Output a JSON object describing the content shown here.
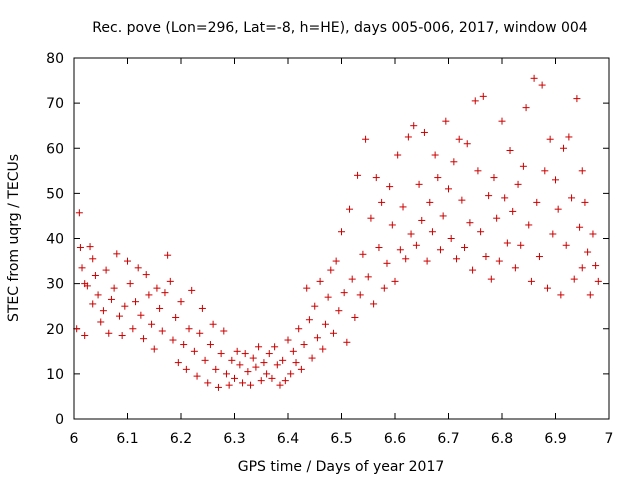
{
  "chart_data": {
    "type": "scatter",
    "title": "Rec. pove (Lon=296, Lat=-8, h=HE), days 005-006, 2017, window 004",
    "xlabel": "GPS time / Days of year 2017",
    "ylabel": "STEC from uqrg / TECUs",
    "xlim": [
      6,
      7
    ],
    "ylim": [
      0,
      80
    ],
    "x_ticks": [
      "6",
      "6.1",
      "6.2",
      "6.3",
      "6.4",
      "6.5",
      "6.6",
      "6.7",
      "6.8",
      "6.9",
      "7"
    ],
    "y_ticks": [
      "0",
      "10",
      "20",
      "30",
      "40",
      "50",
      "60",
      "70",
      "80"
    ],
    "marker": "+",
    "color": "#cc0000",
    "grid": false,
    "series": [
      {
        "name": "STEC",
        "points": [
          [
            6.005,
            20
          ],
          [
            6.01,
            45.7
          ],
          [
            6.012,
            38
          ],
          [
            6.015,
            33.5
          ],
          [
            6.02,
            30
          ],
          [
            6.02,
            18.5
          ],
          [
            6.025,
            29.5
          ],
          [
            6.03,
            38.2
          ],
          [
            6.035,
            35.5
          ],
          [
            6.035,
            25.5
          ],
          [
            6.04,
            31.8
          ],
          [
            6.045,
            27.5
          ],
          [
            6.05,
            21.5
          ],
          [
            6.055,
            24
          ],
          [
            6.06,
            33
          ],
          [
            6.065,
            19
          ],
          [
            6.07,
            26.5
          ],
          [
            6.075,
            29
          ],
          [
            6.08,
            36.6
          ],
          [
            6.085,
            22.8
          ],
          [
            6.09,
            18.5
          ],
          [
            6.095,
            25
          ],
          [
            6.1,
            35
          ],
          [
            6.105,
            30
          ],
          [
            6.11,
            20
          ],
          [
            6.115,
            26
          ],
          [
            6.12,
            33.5
          ],
          [
            6.125,
            23
          ],
          [
            6.13,
            17.8
          ],
          [
            6.135,
            32
          ],
          [
            6.14,
            27.5
          ],
          [
            6.145,
            21
          ],
          [
            6.15,
            15.5
          ],
          [
            6.155,
            29
          ],
          [
            6.16,
            24.5
          ],
          [
            6.165,
            19.5
          ],
          [
            6.17,
            28
          ],
          [
            6.175,
            36.3
          ],
          [
            6.18,
            30.5
          ],
          [
            6.185,
            17.5
          ],
          [
            6.19,
            22.5
          ],
          [
            6.195,
            12.5
          ],
          [
            6.2,
            26
          ],
          [
            6.205,
            16.5
          ],
          [
            6.21,
            11
          ],
          [
            6.215,
            20
          ],
          [
            6.22,
            28.5
          ],
          [
            6.225,
            15
          ],
          [
            6.23,
            9.5
          ],
          [
            6.235,
            19
          ],
          [
            6.24,
            24.5
          ],
          [
            6.245,
            13
          ],
          [
            6.25,
            8
          ],
          [
            6.255,
            16.5
          ],
          [
            6.26,
            21
          ],
          [
            6.265,
            11
          ],
          [
            6.27,
            7
          ],
          [
            6.275,
            14.5
          ],
          [
            6.28,
            19.5
          ],
          [
            6.285,
            10
          ],
          [
            6.29,
            7.5
          ],
          [
            6.295,
            13
          ],
          [
            6.3,
            9
          ],
          [
            6.305,
            15
          ],
          [
            6.31,
            12
          ],
          [
            6.315,
            8
          ],
          [
            6.32,
            14.5
          ],
          [
            6.325,
            10.5
          ],
          [
            6.33,
            7.5
          ],
          [
            6.335,
            13.5
          ],
          [
            6.34,
            11.5
          ],
          [
            6.345,
            16
          ],
          [
            6.35,
            8.5
          ],
          [
            6.355,
            12.5
          ],
          [
            6.36,
            10
          ],
          [
            6.365,
            14.5
          ],
          [
            6.37,
            9
          ],
          [
            6.375,
            16
          ],
          [
            6.38,
            12
          ],
          [
            6.385,
            7.5
          ],
          [
            6.39,
            13
          ],
          [
            6.395,
            8.5
          ],
          [
            6.4,
            17.5
          ],
          [
            6.405,
            10
          ],
          [
            6.41,
            15
          ],
          [
            6.415,
            12.5
          ],
          [
            6.42,
            20
          ],
          [
            6.425,
            11
          ],
          [
            6.43,
            16.5
          ],
          [
            6.435,
            29
          ],
          [
            6.44,
            22
          ],
          [
            6.445,
            13.5
          ],
          [
            6.45,
            25
          ],
          [
            6.455,
            18
          ],
          [
            6.46,
            30.5
          ],
          [
            6.465,
            15.5
          ],
          [
            6.47,
            21
          ],
          [
            6.475,
            27
          ],
          [
            6.48,
            33
          ],
          [
            6.485,
            19
          ],
          [
            6.49,
            35
          ],
          [
            6.495,
            24
          ],
          [
            6.5,
            41.5
          ],
          [
            6.505,
            28
          ],
          [
            6.51,
            17
          ],
          [
            6.515,
            46.5
          ],
          [
            6.52,
            31
          ],
          [
            6.525,
            22.5
          ],
          [
            6.53,
            54
          ],
          [
            6.535,
            27.5
          ],
          [
            6.54,
            36.5
          ],
          [
            6.545,
            62
          ],
          [
            6.55,
            31.5
          ],
          [
            6.555,
            44.5
          ],
          [
            6.56,
            25.5
          ],
          [
            6.565,
            53.5
          ],
          [
            6.57,
            38
          ],
          [
            6.575,
            48
          ],
          [
            6.58,
            29
          ],
          [
            6.585,
            34.5
          ],
          [
            6.59,
            51.5
          ],
          [
            6.595,
            43
          ],
          [
            6.6,
            30.5
          ],
          [
            6.605,
            58.5
          ],
          [
            6.61,
            37.5
          ],
          [
            6.615,
            47
          ],
          [
            6.62,
            35.5
          ],
          [
            6.625,
            62.5
          ],
          [
            6.63,
            41
          ],
          [
            6.635,
            65
          ],
          [
            6.64,
            38.5
          ],
          [
            6.645,
            52
          ],
          [
            6.65,
            44
          ],
          [
            6.655,
            63.5
          ],
          [
            6.66,
            35
          ],
          [
            6.665,
            48
          ],
          [
            6.67,
            41.5
          ],
          [
            6.675,
            58.5
          ],
          [
            6.68,
            53.5
          ],
          [
            6.685,
            37.5
          ],
          [
            6.69,
            45
          ],
          [
            6.695,
            66
          ],
          [
            6.7,
            51
          ],
          [
            6.705,
            40
          ],
          [
            6.71,
            57
          ],
          [
            6.715,
            35.5
          ],
          [
            6.72,
            62
          ],
          [
            6.725,
            48.5
          ],
          [
            6.73,
            38
          ],
          [
            6.735,
            61
          ],
          [
            6.74,
            43.5
          ],
          [
            6.745,
            33
          ],
          [
            6.75,
            70.5
          ],
          [
            6.755,
            55
          ],
          [
            6.76,
            41.5
          ],
          [
            6.765,
            71.5
          ],
          [
            6.77,
            36
          ],
          [
            6.775,
            49.5
          ],
          [
            6.78,
            31
          ],
          [
            6.785,
            53.5
          ],
          [
            6.79,
            44.5
          ],
          [
            6.795,
            35
          ],
          [
            6.8,
            66
          ],
          [
            6.805,
            49
          ],
          [
            6.81,
            39
          ],
          [
            6.815,
            59.5
          ],
          [
            6.82,
            46
          ],
          [
            6.825,
            33.5
          ],
          [
            6.83,
            52
          ],
          [
            6.835,
            38.5
          ],
          [
            6.84,
            56
          ],
          [
            6.845,
            69
          ],
          [
            6.85,
            43
          ],
          [
            6.855,
            30.5
          ],
          [
            6.86,
            75.5
          ],
          [
            6.865,
            48
          ],
          [
            6.87,
            36
          ],
          [
            6.875,
            74
          ],
          [
            6.88,
            55
          ],
          [
            6.885,
            29
          ],
          [
            6.89,
            62
          ],
          [
            6.895,
            41
          ],
          [
            6.9,
            53
          ],
          [
            6.905,
            46.5
          ],
          [
            6.91,
            27.5
          ],
          [
            6.915,
            60
          ],
          [
            6.92,
            38.5
          ],
          [
            6.925,
            62.5
          ],
          [
            6.93,
            49
          ],
          [
            6.935,
            31
          ],
          [
            6.94,
            71
          ],
          [
            6.945,
            42.5
          ],
          [
            6.95,
            33.5
          ],
          [
            6.95,
            55
          ],
          [
            6.955,
            48
          ],
          [
            6.96,
            37
          ],
          [
            6.965,
            27.5
          ],
          [
            6.97,
            41
          ],
          [
            6.975,
            34
          ],
          [
            6.98,
            30.5
          ]
        ]
      }
    ]
  }
}
